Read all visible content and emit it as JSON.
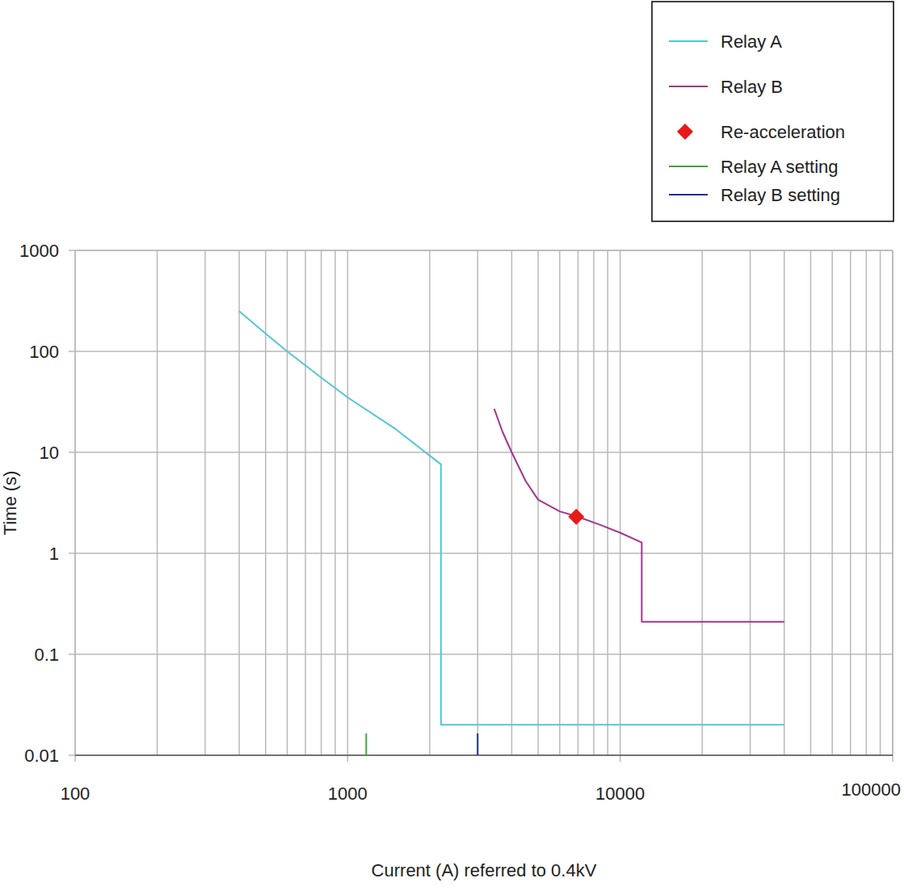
{
  "chart_data": {
    "type": "line",
    "x_label": "Current (A) referred to 0.4kV",
    "y_label": "Time (s)",
    "log": true,
    "grid": true,
    "legend": "top-right",
    "xlim": [
      100,
      100000
    ],
    "ylim": [
      0.01,
      1000
    ],
    "xticks": [
      100,
      1000,
      10000,
      100000
    ],
    "yticks": [
      0.01,
      0.1,
      1,
      10,
      100,
      1000
    ],
    "series": [
      {
        "name": "Relay A",
        "type": "line",
        "color": "#56c5d2",
        "x": [
          400,
          500,
          600,
          800,
          1000,
          1500,
          2200,
          2200,
          40000
        ],
        "values": [
          250,
          150,
          100,
          55,
          35,
          17,
          7.6,
          0.02,
          0.02
        ]
      },
      {
        "name": "Relay B",
        "type": "line",
        "color": "#a3358c",
        "x": [
          3450,
          3700,
          4000,
          4500,
          5000,
          6000,
          7000,
          8500,
          10000,
          12000,
          12000,
          40000
        ],
        "values": [
          27,
          16,
          10,
          5.2,
          3.4,
          2.6,
          2.3,
          1.9,
          1.6,
          1.28,
          0.21,
          0.21
        ]
      },
      {
        "name": "Re-acceleration",
        "type": "scatter",
        "marker": "diamond",
        "color": "#e8191a",
        "x": [
          6900
        ],
        "values": [
          2.3
        ]
      },
      {
        "name": "Relay A setting",
        "type": "vline",
        "color": "#3aa63a",
        "x": [
          1170
        ]
      },
      {
        "name": "Relay B setting",
        "type": "vline",
        "color": "#1f2f8f",
        "x": [
          3000
        ]
      }
    ]
  }
}
